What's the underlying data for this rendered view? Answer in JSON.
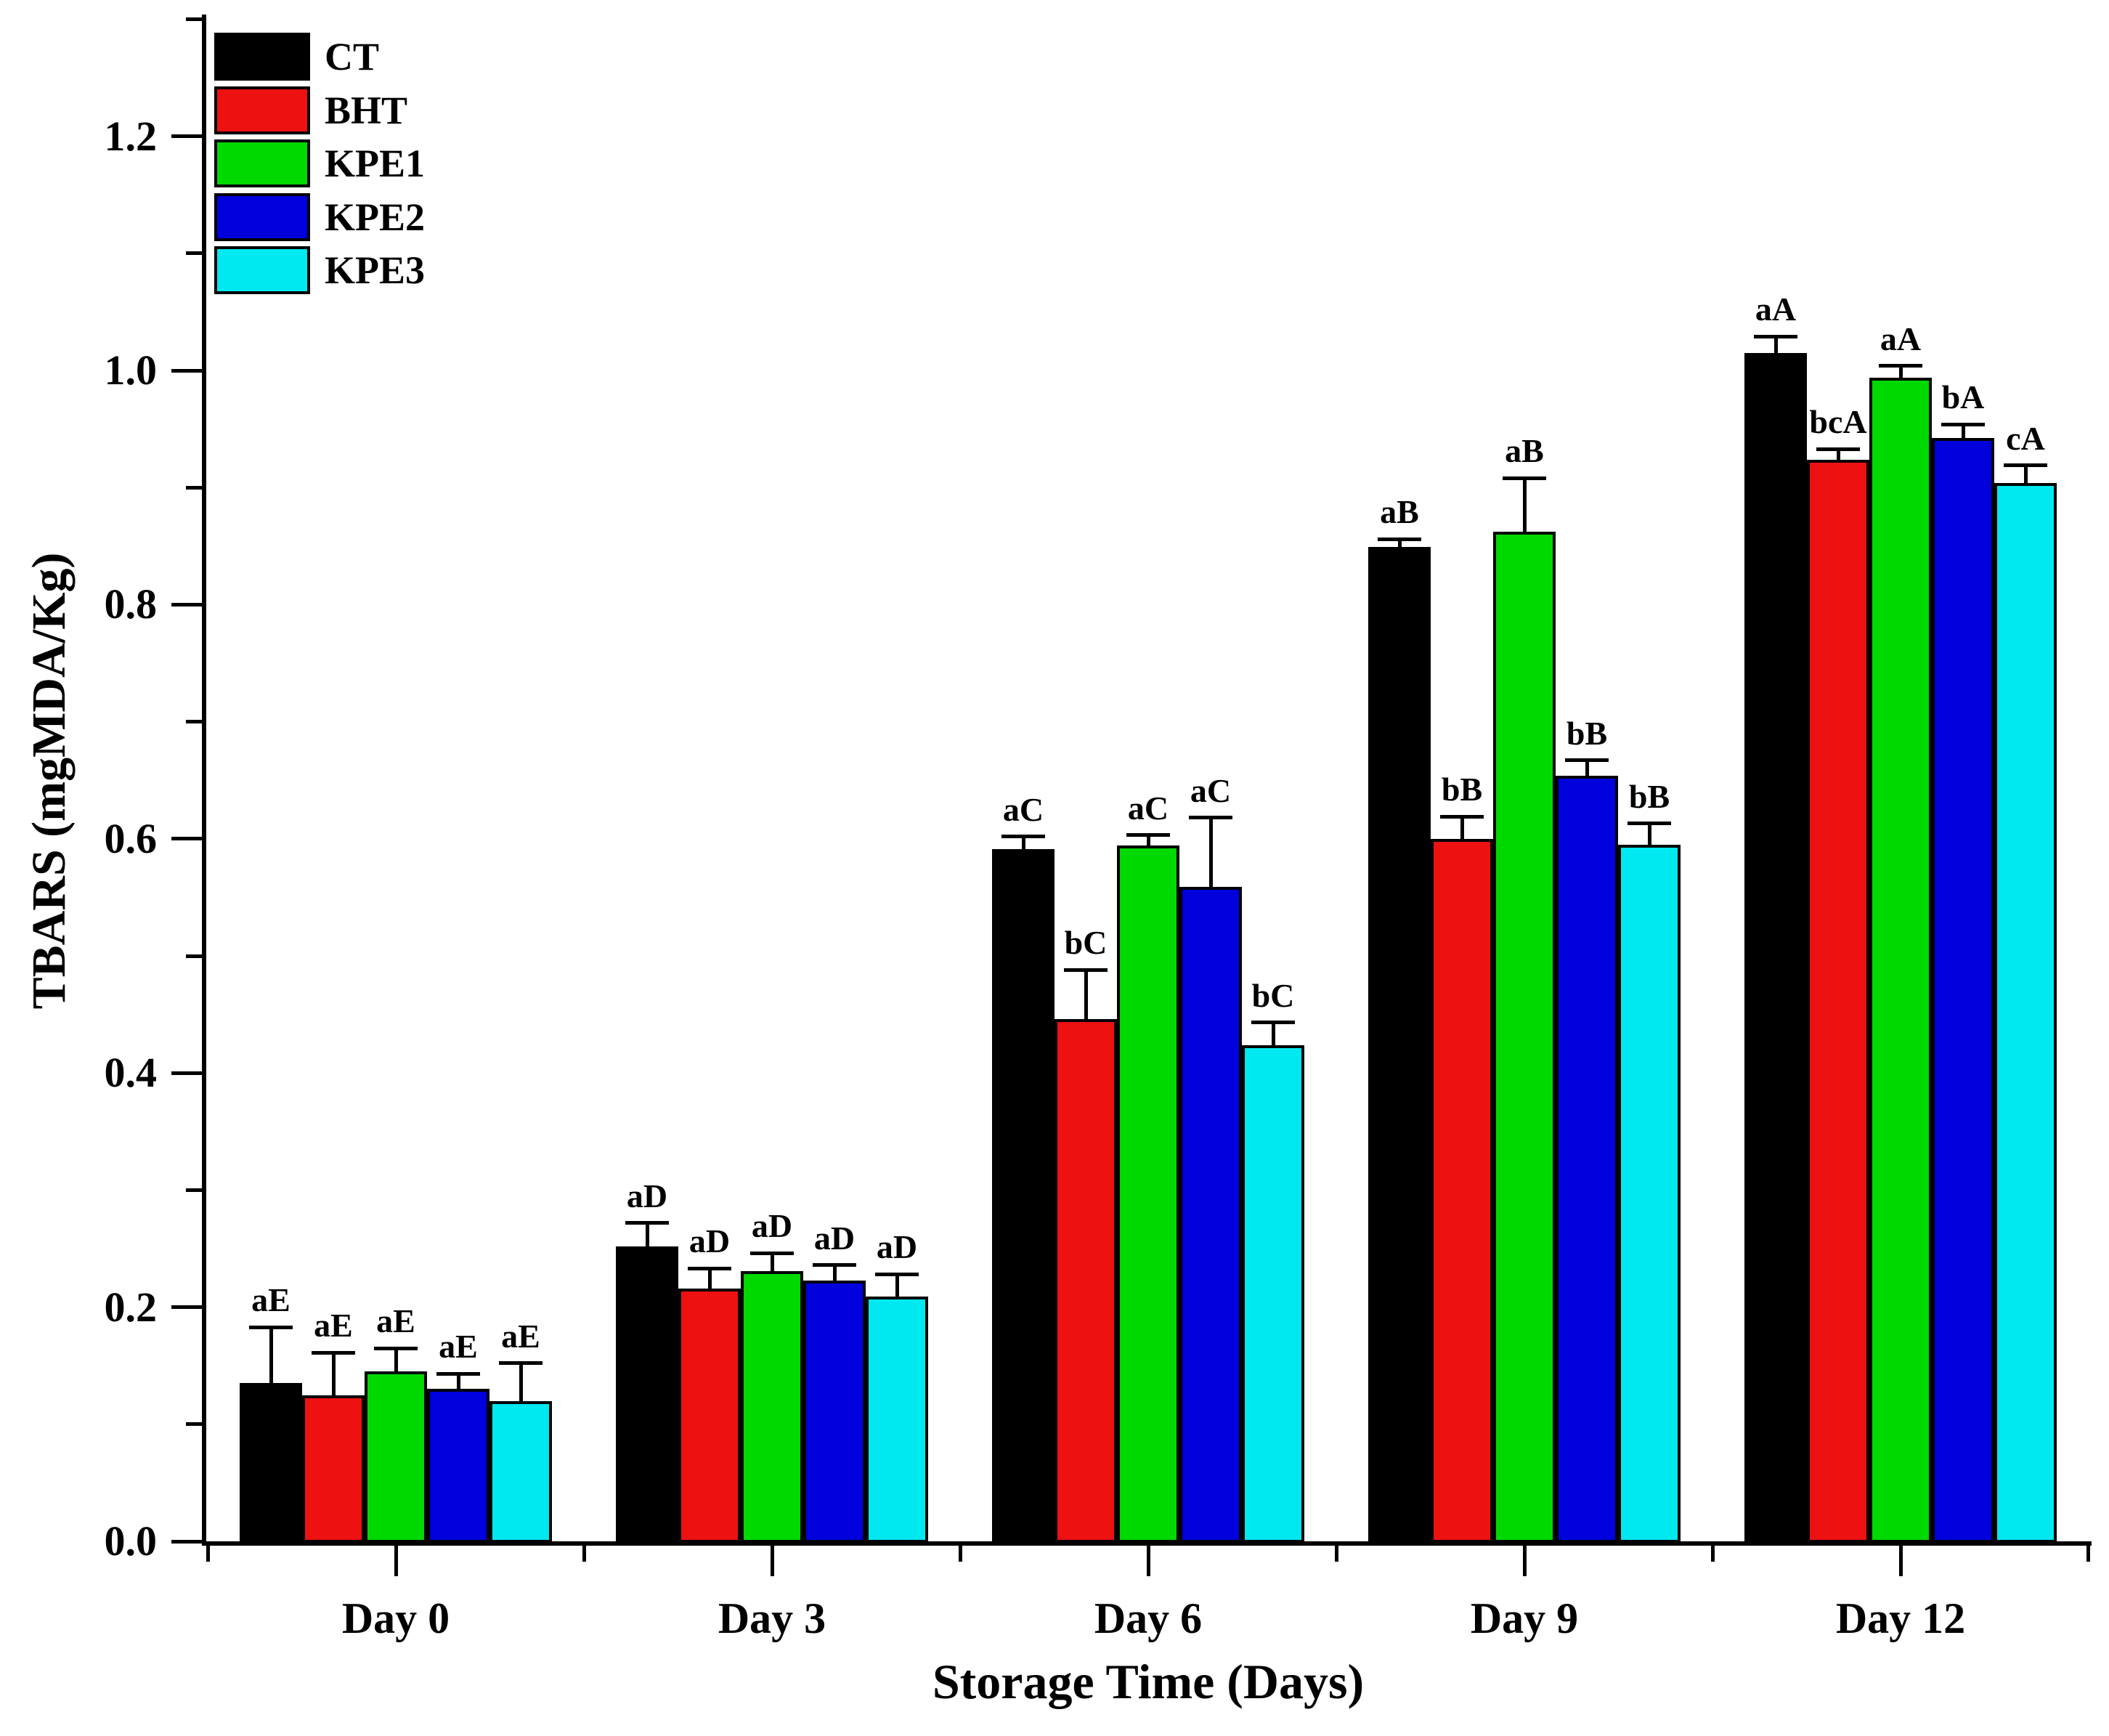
{
  "figure": {
    "background": "#ffffff"
  },
  "chart_data": {
    "type": "bar",
    "title": "",
    "xlabel": "Storage Time (Days)",
    "ylabel": "TBARS (mgMDA/Kg)",
    "categories": [
      "Day 0",
      "Day 3",
      "Day 6",
      "Day 9",
      "Day 12"
    ],
    "series": [
      {
        "name": "CT",
        "color": "#000000",
        "values": [
          0.135,
          0.252,
          0.591,
          0.849,
          1.015
        ],
        "errors": [
          0.048,
          0.02,
          0.011,
          0.007,
          0.014
        ],
        "labels": [
          "aE",
          "aD",
          "aC",
          "aB",
          "aA"
        ]
      },
      {
        "name": "BHT",
        "color": "#ee1111",
        "values": [
          0.125,
          0.216,
          0.446,
          0.6,
          0.924
        ],
        "errors": [
          0.036,
          0.017,
          0.042,
          0.019,
          0.009
        ],
        "labels": [
          "aE",
          "aD",
          "bC",
          "bB",
          "bcA"
        ]
      },
      {
        "name": "KPE1",
        "color": "#00d900",
        "values": [
          0.145,
          0.231,
          0.594,
          0.862,
          0.994
        ],
        "errors": [
          0.02,
          0.015,
          0.009,
          0.046,
          0.01
        ],
        "labels": [
          "aE",
          "aD",
          "aC",
          "aB",
          "aA"
        ]
      },
      {
        "name": "KPE2",
        "color": "#0000dd",
        "values": [
          0.13,
          0.223,
          0.559,
          0.654,
          0.942
        ],
        "errors": [
          0.013,
          0.013,
          0.059,
          0.013,
          0.012
        ],
        "labels": [
          "aE",
          "aD",
          "aC",
          "bB",
          "bA"
        ]
      },
      {
        "name": "KPE3",
        "color": "#00e9f0",
        "values": [
          0.12,
          0.209,
          0.424,
          0.595,
          0.904
        ],
        "errors": [
          0.032,
          0.019,
          0.019,
          0.018,
          0.015
        ],
        "labels": [
          "aE",
          "aD",
          "bC",
          "bB",
          "cA"
        ]
      }
    ],
    "ylim": [
      0,
      1.3
    ],
    "y_ticks": [
      {
        "value": 0.0,
        "label": "0.0"
      },
      {
        "value": 0.2,
        "label": "0.2"
      },
      {
        "value": 0.4,
        "label": "0.4"
      },
      {
        "value": 0.6,
        "label": "0.6"
      },
      {
        "value": 0.8,
        "label": "0.8"
      },
      {
        "value": 1.0,
        "label": "1.0"
      },
      {
        "value": 1.2,
        "label": "1.2"
      }
    ],
    "y_minor_ticks": [
      0.1,
      0.3,
      0.5,
      0.7,
      0.9,
      1.1,
      1.3
    ],
    "grid": false,
    "error_bars": true,
    "legend_position": "top-left"
  }
}
